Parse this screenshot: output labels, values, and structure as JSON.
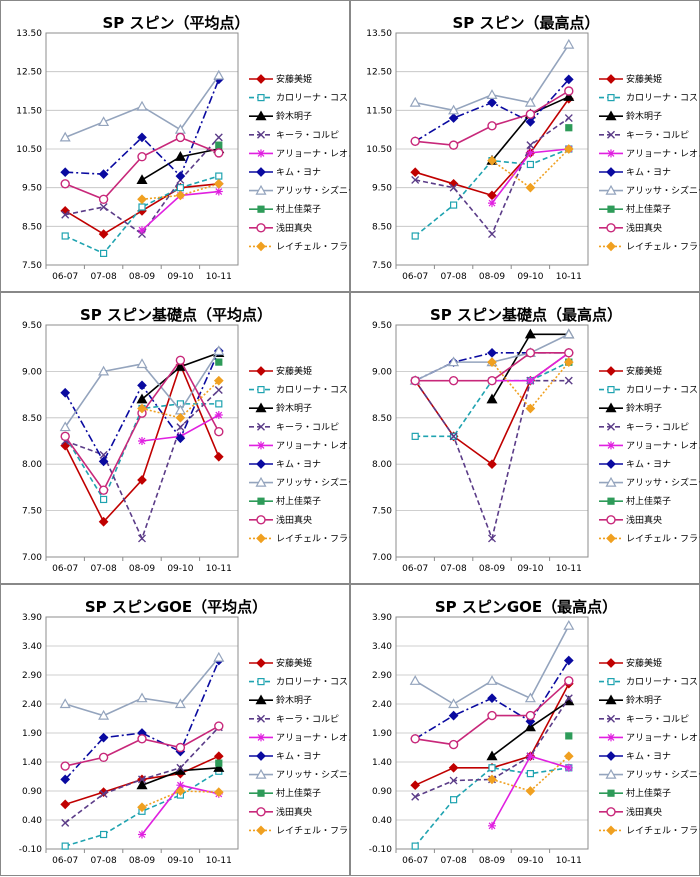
{
  "series_styles": [
    {
      "name": "安藤美姫",
      "color": "#c00000",
      "dash": "",
      "marker": "diamond",
      "fill": true
    },
    {
      "name": "カロリーナ・コストナー",
      "color": "#1fa3b0",
      "dash": "5,3",
      "marker": "square",
      "fill": false
    },
    {
      "name": "鈴木明子",
      "color": "#000000",
      "dash": "",
      "marker": "triangle",
      "fill": true
    },
    {
      "name": "キーラ・コルピ",
      "color": "#5b3c88",
      "dash": "5,3",
      "marker": "x",
      "fill": false
    },
    {
      "name": "アリョーナ・レオノワ",
      "color": "#e020e0",
      "dash": "",
      "marker": "star",
      "fill": false
    },
    {
      "name": "キム・ヨナ",
      "color": "#0a0aa0",
      "dash": "8,3,2,3",
      "marker": "diamond",
      "fill": true
    },
    {
      "name": "アリッサ・シズニー",
      "color": "#94a4bd",
      "dash": "",
      "marker": "triangle",
      "fill": false
    },
    {
      "name": "村上佳菜子",
      "color": "#2e9b59",
      "dash": "",
      "marker": "square",
      "fill": true
    },
    {
      "name": "浅田真央",
      "color": "#c8287a",
      "dash": "",
      "marker": "circle",
      "fill": false
    },
    {
      "name": "レイチェル・フラット",
      "color": "#f0a020",
      "dash": "2,2",
      "marker": "diamond",
      "fill": true
    }
  ],
  "chart_data": [
    {
      "type": "line",
      "title": "SP スピン（平均点）",
      "categories": [
        "06-07",
        "07-08",
        "08-09",
        "09-10",
        "10-11"
      ],
      "ylim": [
        7.5,
        13.5
      ],
      "yticks": [
        "7.50",
        "8.50",
        "9.50",
        "10.50",
        "11.50",
        "12.50",
        "13.50"
      ],
      "series": [
        {
          "name": "安藤美姫",
          "values": [
            8.9,
            8.3,
            8.9,
            9.5,
            9.6
          ]
        },
        {
          "name": "カロリーナ・コストナー",
          "values": [
            8.25,
            7.8,
            9.0,
            9.5,
            9.8
          ]
        },
        {
          "name": "鈴木明子",
          "values": [
            null,
            null,
            9.7,
            10.3,
            10.5
          ]
        },
        {
          "name": "キーラ・コルピ",
          "values": [
            8.8,
            9.0,
            8.3,
            9.7,
            10.8
          ]
        },
        {
          "name": "アリョーナ・レオノワ",
          "values": [
            null,
            null,
            8.4,
            9.3,
            9.4
          ]
        },
        {
          "name": "キム・ヨナ",
          "values": [
            9.9,
            9.85,
            10.8,
            9.8,
            12.3
          ]
        },
        {
          "name": "アリッサ・シズニー",
          "values": [
            10.8,
            11.2,
            11.6,
            11.0,
            12.4
          ]
        },
        {
          "name": "村上佳菜子",
          "values": [
            null,
            null,
            null,
            null,
            10.6
          ]
        },
        {
          "name": "浅田真央",
          "values": [
            9.6,
            9.2,
            10.3,
            10.8,
            10.4
          ]
        },
        {
          "name": "レイチェル・フラット",
          "values": [
            null,
            null,
            9.2,
            9.3,
            9.6
          ]
        }
      ]
    },
    {
      "type": "line",
      "title": "SP スピン（最高点）",
      "categories": [
        "06-07",
        "07-08",
        "08-09",
        "09-10",
        "10-11"
      ],
      "ylim": [
        7.5,
        13.5
      ],
      "yticks": [
        "7.50",
        "8.50",
        "9.50",
        "10.50",
        "11.50",
        "12.50",
        "13.50"
      ],
      "series": [
        {
          "name": "安藤美姫",
          "values": [
            9.9,
            9.6,
            9.3,
            10.4,
            11.8
          ]
        },
        {
          "name": "カロリーナ・コストナー",
          "values": [
            8.25,
            9.05,
            10.2,
            10.1,
            10.5
          ]
        },
        {
          "name": "鈴木明子",
          "values": [
            null,
            null,
            10.2,
            11.4,
            11.85
          ]
        },
        {
          "name": "キーラ・コルピ",
          "values": [
            9.7,
            9.5,
            8.3,
            10.6,
            11.3
          ]
        },
        {
          "name": "アリョーナ・レオノワ",
          "values": [
            null,
            null,
            9.1,
            10.4,
            10.5
          ]
        },
        {
          "name": "キム・ヨナ",
          "values": [
            10.7,
            11.3,
            11.7,
            11.2,
            12.3
          ]
        },
        {
          "name": "アリッサ・シズニー",
          "values": [
            11.7,
            11.5,
            11.9,
            11.7,
            13.2
          ]
        },
        {
          "name": "村上佳菜子",
          "values": [
            null,
            null,
            null,
            null,
            11.05
          ]
        },
        {
          "name": "浅田真央",
          "values": [
            10.7,
            10.6,
            11.1,
            11.4,
            12.0
          ]
        },
        {
          "name": "レイチェル・フラット",
          "values": [
            null,
            null,
            10.2,
            9.5,
            10.5
          ]
        }
      ]
    },
    {
      "type": "line",
      "title": "SP スピン基礎点（平均点）",
      "categories": [
        "06-07",
        "07-08",
        "08-09",
        "09-10",
        "10-11"
      ],
      "ylim": [
        7.0,
        9.5
      ],
      "yticks": [
        "7.00",
        "7.50",
        "8.00",
        "8.50",
        "9.00",
        "9.50"
      ],
      "series": [
        {
          "name": "安藤美姫",
          "values": [
            8.2,
            7.38,
            7.83,
            9.07,
            8.08
          ]
        },
        {
          "name": "カロリーナ・コストナー",
          "values": [
            8.3,
            7.62,
            8.6,
            8.65,
            8.65
          ]
        },
        {
          "name": "鈴木明子",
          "values": [
            null,
            null,
            8.7,
            9.05,
            9.2
          ]
        },
        {
          "name": "キーラ・コルピ",
          "values": [
            8.25,
            8.1,
            7.2,
            8.4,
            8.8
          ]
        },
        {
          "name": "アリョーナ・レオノワ",
          "values": [
            null,
            null,
            8.25,
            8.3,
            8.53
          ]
        },
        {
          "name": "キム・ヨナ",
          "values": [
            8.77,
            8.03,
            8.85,
            8.28,
            9.22
          ]
        },
        {
          "name": "アリッサ・シズニー",
          "values": [
            8.4,
            9.0,
            9.08,
            8.58,
            9.22
          ]
        },
        {
          "name": "村上佳菜子",
          "values": [
            null,
            null,
            null,
            null,
            9.1
          ]
        },
        {
          "name": "浅田真央",
          "values": [
            8.3,
            7.72,
            8.55,
            9.12,
            8.35
          ]
        },
        {
          "name": "レイチェル・フラット",
          "values": [
            null,
            null,
            8.6,
            8.5,
            8.9
          ]
        }
      ]
    },
    {
      "type": "line",
      "title": "SP スピン基礎点（最高点）",
      "categories": [
        "06-07",
        "07-08",
        "08-09",
        "09-10",
        "10-11"
      ],
      "ylim": [
        7.0,
        9.5
      ],
      "yticks": [
        "7.00",
        "7.50",
        "8.00",
        "8.50",
        "9.00",
        "9.50"
      ],
      "series": [
        {
          "name": "安藤美姫",
          "values": [
            8.9,
            8.3,
            8.0,
            8.9,
            9.2
          ]
        },
        {
          "name": "カロリーナ・コストナー",
          "values": [
            8.3,
            8.3,
            8.9,
            8.9,
            9.1
          ]
        },
        {
          "name": "鈴木明子",
          "values": [
            null,
            null,
            8.7,
            9.4,
            9.4
          ]
        },
        {
          "name": "キーラ・コルピ",
          "values": [
            8.9,
            8.3,
            7.2,
            8.9,
            8.9
          ]
        },
        {
          "name": "アリョーナ・レオノワ",
          "values": [
            null,
            null,
            8.9,
            8.9,
            9.2
          ]
        },
        {
          "name": "キム・ヨナ",
          "values": [
            8.9,
            9.1,
            9.2,
            9.2,
            9.2
          ]
        },
        {
          "name": "アリッサ・シズニー",
          "values": [
            8.9,
            9.1,
            9.1,
            9.2,
            9.4
          ]
        },
        {
          "name": "村上佳菜子",
          "values": [
            null,
            null,
            null,
            null,
            9.1
          ]
        },
        {
          "name": "浅田真央",
          "values": [
            8.9,
            8.9,
            8.9,
            9.2,
            9.2
          ]
        },
        {
          "name": "レイチェル・フラット",
          "values": [
            null,
            null,
            9.1,
            8.6,
            9.1
          ]
        }
      ]
    },
    {
      "type": "line",
      "title": "SP スピンGOE（平均点）",
      "categories": [
        "06-07",
        "07-08",
        "08-09",
        "09-10",
        "10-11"
      ],
      "ylim": [
        -0.1,
        3.9
      ],
      "yticks": [
        "-0.10",
        "0.40",
        "0.90",
        "1.40",
        "1.90",
        "2.40",
        "2.90",
        "3.40",
        "3.90"
      ],
      "series": [
        {
          "name": "安藤美姫",
          "values": [
            0.67,
            0.88,
            1.1,
            1.2,
            1.5
          ]
        },
        {
          "name": "カロリーナ・コストナー",
          "values": [
            -0.05,
            0.15,
            0.55,
            0.83,
            1.24
          ]
        },
        {
          "name": "鈴木明子",
          "values": [
            null,
            null,
            1.0,
            1.25,
            1.3
          ]
        },
        {
          "name": "キーラ・コルピ",
          "values": [
            0.35,
            0.85,
            1.1,
            1.3,
            2.0
          ]
        },
        {
          "name": "アリョーナ・レオノワ",
          "values": [
            null,
            null,
            0.15,
            1.0,
            0.85
          ]
        },
        {
          "name": "キム・ヨナ",
          "values": [
            1.1,
            1.82,
            1.9,
            1.58,
            3.15
          ]
        },
        {
          "name": "アリッサ・シズニー",
          "values": [
            2.4,
            2.2,
            2.5,
            2.4,
            3.2
          ]
        },
        {
          "name": "村上佳菜子",
          "values": [
            null,
            null,
            null,
            null,
            1.38
          ]
        },
        {
          "name": "浅田真央",
          "values": [
            1.33,
            1.48,
            1.8,
            1.65,
            2.02
          ]
        },
        {
          "name": "レイチェル・フラット",
          "values": [
            null,
            null,
            0.62,
            0.9,
            0.88
          ]
        }
      ]
    },
    {
      "type": "line",
      "title": "SP スピンGOE（最高点）",
      "categories": [
        "06-07",
        "07-08",
        "08-09",
        "09-10",
        "10-11"
      ],
      "ylim": [
        -0.1,
        3.9
      ],
      "yticks": [
        "-0.10",
        "0.40",
        "0.90",
        "1.40",
        "1.90",
        "2.40",
        "2.90",
        "3.40",
        "3.90"
      ],
      "series": [
        {
          "name": "安藤美姫",
          "values": [
            1.0,
            1.3,
            1.3,
            1.5,
            2.75
          ]
        },
        {
          "name": "カロリーナ・コストナー",
          "values": [
            -0.05,
            0.75,
            1.3,
            1.2,
            1.3
          ]
        },
        {
          "name": "鈴木明子",
          "values": [
            null,
            null,
            1.5,
            2.0,
            2.45
          ]
        },
        {
          "name": "キーラ・コルピ",
          "values": [
            0.8,
            1.08,
            1.1,
            1.5,
            2.5
          ]
        },
        {
          "name": "アリョーナ・レオノワ",
          "values": [
            null,
            null,
            0.3,
            1.5,
            1.3
          ]
        },
        {
          "name": "キム・ヨナ",
          "values": [
            1.8,
            2.2,
            2.5,
            2.1,
            3.15
          ]
        },
        {
          "name": "アリッサ・シズニー",
          "values": [
            2.8,
            2.4,
            2.8,
            2.5,
            3.75
          ]
        },
        {
          "name": "村上佳菜子",
          "values": [
            null,
            null,
            null,
            null,
            1.85
          ]
        },
        {
          "name": "浅田真央",
          "values": [
            1.8,
            1.7,
            2.2,
            2.2,
            2.8
          ]
        },
        {
          "name": "レイチェル・フラット",
          "values": [
            null,
            null,
            1.1,
            0.9,
            1.5
          ]
        }
      ]
    }
  ]
}
